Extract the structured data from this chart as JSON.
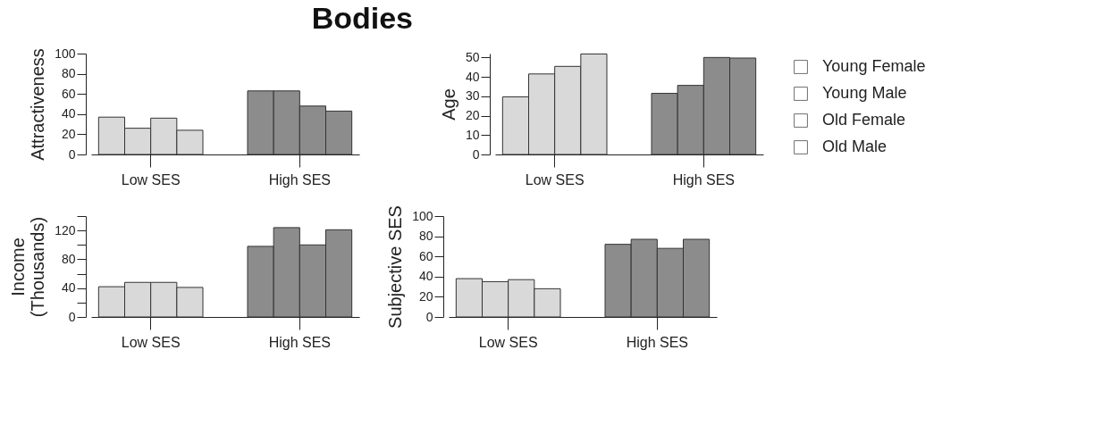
{
  "chart_data": [
    {
      "type": "bar",
      "title": "Bodies",
      "ylabel": "Attractiveness",
      "categories": [
        "Low SES",
        "High SES"
      ],
      "ylim": [
        0,
        100
      ],
      "yticks": [
        0,
        20,
        40,
        60,
        80,
        100
      ],
      "series": [
        {
          "colors": [
            "#d9d9d9",
            "#8c8c8c"
          ],
          "values": [
            37,
            63
          ]
        },
        {
          "colors": [
            "#d9d9d9",
            "#8c8c8c"
          ],
          "values": [
            26,
            63
          ]
        },
        {
          "colors": [
            "#d9d9d9",
            "#8c8c8c"
          ],
          "values": [
            36,
            48
          ]
        },
        {
          "colors": [
            "#d9d9d9",
            "#8c8c8c"
          ],
          "values": [
            24,
            43
          ]
        }
      ]
    },
    {
      "type": "bar",
      "ylabel": "Age",
      "categories": [
        "Low SES",
        "High SES"
      ],
      "ylim": [
        0,
        52
      ],
      "yticks": [
        0,
        10,
        20,
        30,
        40,
        50
      ],
      "legend": "right",
      "series": [
        {
          "name": "Young Female",
          "colors": [
            "#d9d9d9",
            "#8c8c8c"
          ],
          "values": [
            29.7,
            31.5
          ]
        },
        {
          "name": "Young Male",
          "colors": [
            "#d9d9d9",
            "#8c8c8c"
          ],
          "values": [
            41.5,
            35.6
          ]
        },
        {
          "name": "Old Female",
          "colors": [
            "#d9d9d9",
            "#8c8c8c"
          ],
          "values": [
            45.4,
            50
          ]
        },
        {
          "name": "Old Male",
          "colors": [
            "#d9d9d9",
            "#8c8c8c"
          ],
          "values": [
            51.8,
            49.7
          ]
        }
      ]
    },
    {
      "type": "bar",
      "ylabel": "Income\n(Thousands)",
      "categories": [
        "Low SES",
        "High SES"
      ],
      "ylim": [
        0,
        140
      ],
      "yticks": [
        0,
        {
          "value": 20,
          "label": null
        },
        40,
        {
          "value": 60,
          "label": null
        },
        80,
        {
          "value": 100,
          "label": null
        },
        120,
        {
          "value": 140,
          "label": null
        }
      ],
      "series": [
        {
          "colors": [
            "#d9d9d9",
            "#8c8c8c"
          ],
          "values": [
            42,
            98
          ]
        },
        {
          "colors": [
            "#d9d9d9",
            "#8c8c8c"
          ],
          "values": [
            48,
            124
          ]
        },
        {
          "colors": [
            "#d9d9d9",
            "#8c8c8c"
          ],
          "values": [
            48,
            100
          ]
        },
        {
          "colors": [
            "#d9d9d9",
            "#8c8c8c"
          ],
          "values": [
            41,
            121
          ]
        }
      ]
    },
    {
      "type": "bar",
      "ylabel": "Subjective SES",
      "categories": [
        "Low SES",
        "High SES"
      ],
      "ylim": [
        0,
        100
      ],
      "yticks": [
        0,
        20,
        40,
        60,
        80,
        100
      ],
      "series": [
        {
          "colors": [
            "#d9d9d9",
            "#8c8c8c"
          ],
          "values": [
            38,
            72
          ]
        },
        {
          "colors": [
            "#d9d9d9",
            "#8c8c8c"
          ],
          "values": [
            35,
            77
          ]
        },
        {
          "colors": [
            "#d9d9d9",
            "#8c8c8c"
          ],
          "values": [
            37,
            68
          ]
        },
        {
          "colors": [
            "#d9d9d9",
            "#8c8c8c"
          ],
          "values": [
            28,
            77
          ]
        }
      ]
    }
  ]
}
